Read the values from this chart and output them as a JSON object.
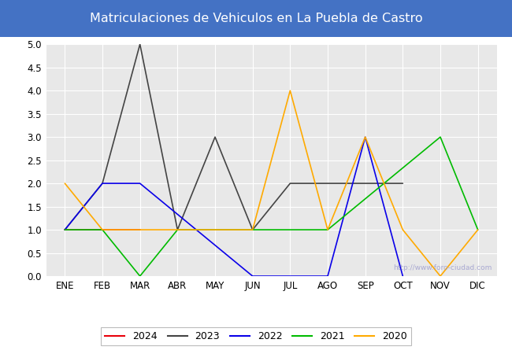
{
  "title": "Matriculaciones de Vehiculos en La Puebla de Castro",
  "months": [
    "ENE",
    "FEB",
    "MAR",
    "ABR",
    "MAY",
    "JUN",
    "JUL",
    "AGO",
    "SEP",
    "OCT",
    "NOV",
    "DIC"
  ],
  "series": {
    "2024": {
      "color": "#e8000a",
      "values": [
        1,
        1,
        1,
        null,
        null,
        null,
        null,
        null,
        null,
        null,
        null,
        null
      ]
    },
    "2023": {
      "color": "#444444",
      "values": [
        1,
        2,
        5,
        1,
        3,
        1,
        2,
        null,
        null,
        2,
        null,
        null
      ]
    },
    "2022": {
      "color": "#0a00e8",
      "values": [
        1,
        2,
        2,
        null,
        null,
        0,
        null,
        0,
        3,
        0,
        null,
        null
      ]
    },
    "2021": {
      "color": "#00bb00",
      "values": [
        1,
        1,
        0,
        1,
        1,
        1,
        1,
        1,
        null,
        null,
        3,
        1
      ]
    },
    "2020": {
      "color": "#ffaa00",
      "values": [
        2,
        1,
        1,
        1,
        1,
        1,
        4,
        1,
        3,
        1,
        0,
        1
      ]
    }
  },
  "ylim": [
    0,
    5.0
  ],
  "yticks": [
    0.0,
    0.5,
    1.0,
    1.5,
    2.0,
    2.5,
    3.0,
    3.5,
    4.0,
    4.5,
    5.0
  ],
  "title_bgcolor": "#4472c4",
  "title_fgcolor": "#ffffff",
  "plot_bgcolor": "#e8e8e8",
  "fig_bgcolor": "#ffffff",
  "watermark": "http://www.foro-ciudad.com",
  "legend_order": [
    "2024",
    "2023",
    "2022",
    "2021",
    "2020"
  ]
}
